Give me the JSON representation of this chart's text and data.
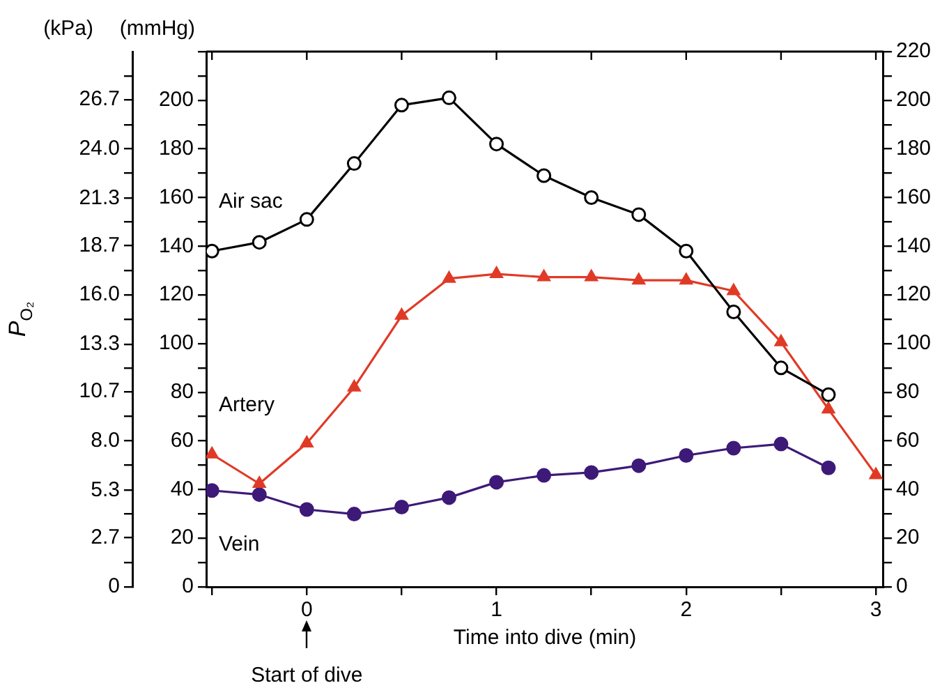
{
  "chart_data": {
    "type": "line",
    "xlabel": "Time into dive (min)",
    "ylabel": "P$_{O₂}$",
    "annotations": [
      "(kPa)",
      "(mmHg)",
      "Start of dive"
    ],
    "x": [
      -0.5,
      -0.25,
      0,
      0.25,
      0.5,
      0.75,
      1,
      1.25,
      1.5,
      1.75,
      2,
      2.25,
      2.5,
      2.75,
      3
    ],
    "series": [
      {
        "name": "Air sac",
        "color": "#000000",
        "marker": "circle",
        "axis": "y2",
        "values": [
          138,
          141.6,
          151,
          174,
          198,
          201,
          182,
          169,
          160,
          153,
          138,
          113,
          90,
          79,
          null
        ]
      },
      {
        "name": "Artery",
        "color": "#e03a26",
        "marker": "triangle",
        "axis": "y2",
        "values": [
          54.5,
          42.4,
          59,
          82,
          111.5,
          126.7,
          128.6,
          127.3,
          127.3,
          126,
          126,
          121.6,
          100.6,
          73,
          46
        ]
      },
      {
        "name": "Vein",
        "color": "#3d1a78",
        "marker": "circle",
        "axis": "y2",
        "values": [
          39.6,
          37.9,
          31.8,
          29.9,
          32.8,
          36.7,
          43,
          45.8,
          47,
          49.8,
          54,
          57,
          58.7,
          48.9,
          null
        ]
      }
    ],
    "xlim": [
      -0.53,
      3.04
    ],
    "xticks": [
      {
        "value": -0.5,
        "label": null
      },
      0,
      {
        "value": 0.5,
        "label": null
      },
      1,
      {
        "value": 1.5,
        "label": null
      },
      2,
      {
        "value": 2.5,
        "label": null
      },
      3
    ],
    "ylim": [
      0,
      29.33
    ],
    "yticks": [
      0,
      {
        "value": 1.33,
        "label": null
      },
      2.7,
      {
        "value": 4,
        "label": null
      },
      5.3,
      {
        "value": 6.67,
        "label": null
      },
      {
        "value": 8,
        "label": "8.0"
      },
      {
        "value": 9.33,
        "label": null
      },
      10.7,
      {
        "value": 12,
        "label": null
      },
      13.3,
      {
        "value": 14.67,
        "label": null
      },
      {
        "value": 16,
        "label": "16.0"
      },
      {
        "value": 17.33,
        "label": null
      },
      18.7,
      {
        "value": 20,
        "label": null
      },
      21.3,
      {
        "value": 22.67,
        "label": null
      },
      {
        "value": 24,
        "label": "24.0"
      },
      {
        "value": 25.33,
        "label": null
      },
      26.7,
      {
        "value": 28,
        "label": null
      }
    ],
    "y2lim": [
      0,
      220
    ],
    "y2ticks": [
      0,
      {
        "value": 10,
        "label": null
      },
      20,
      {
        "value": 30,
        "label": null
      },
      40,
      {
        "value": 50,
        "label": null
      },
      60,
      {
        "value": 70,
        "label": null
      },
      80,
      {
        "value": 90,
        "label": null
      },
      100,
      {
        "value": 110,
        "label": null
      },
      120,
      {
        "value": 130,
        "label": null
      },
      140,
      {
        "value": 150,
        "label": null
      },
      160,
      {
        "value": 170,
        "label": null
      },
      180,
      {
        "value": 190,
        "label": null
      },
      200,
      {
        "value": 210,
        "label": null
      },
      {
        "value": 220,
        "label": null
      }
    ],
    "y3lim": [
      0,
      220
    ],
    "y3ticks": [
      0,
      {
        "value": 10,
        "label": null
      },
      20,
      {
        "value": 30,
        "label": null
      },
      40,
      {
        "value": 50,
        "label": null
      },
      60,
      {
        "value": 70,
        "label": null
      },
      80,
      {
        "value": 90,
        "label": null
      },
      100,
      {
        "value": 110,
        "label": null
      },
      120,
      {
        "value": 130,
        "label": null
      },
      140,
      {
        "value": 150,
        "label": null
      },
      160,
      {
        "value": 170,
        "label": null
      },
      180,
      {
        "value": 190,
        "label": null
      },
      200,
      {
        "value": 210,
        "label": null
      },
      220
    ],
    "grid": false,
    "legend": false,
    "line_style": "solid"
  }
}
